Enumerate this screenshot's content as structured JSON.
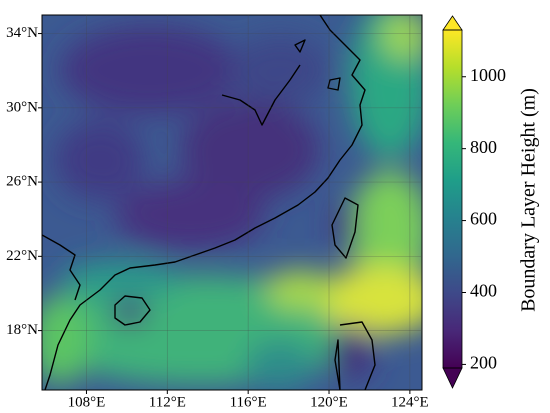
{
  "chart_data": {
    "type": "map",
    "xlim": [
      105.8,
      124.6
    ],
    "ylim": [
      14.8,
      35.0
    ],
    "xticks": [
      {
        "value": 108,
        "label": "108°E"
      },
      {
        "value": 112,
        "label": "112°E"
      },
      {
        "value": 116,
        "label": "116°E"
      },
      {
        "value": 120,
        "label": "120°E"
      },
      {
        "value": 124,
        "label": "124°E"
      }
    ],
    "yticks": [
      {
        "value": 18,
        "label": "18°N"
      },
      {
        "value": 22,
        "label": "22°N"
      },
      {
        "value": 26,
        "label": "26°N"
      },
      {
        "value": 30,
        "label": "30°N"
      },
      {
        "value": 34,
        "label": "34°N"
      }
    ],
    "grid": true,
    "colorbar": {
      "label": "Boundary Layer Height  (m)",
      "lim": [
        190,
        1130
      ],
      "ticks": [
        200,
        400,
        600,
        800,
        1000
      ],
      "colormap": "viridis",
      "extend": "both"
    }
  }
}
